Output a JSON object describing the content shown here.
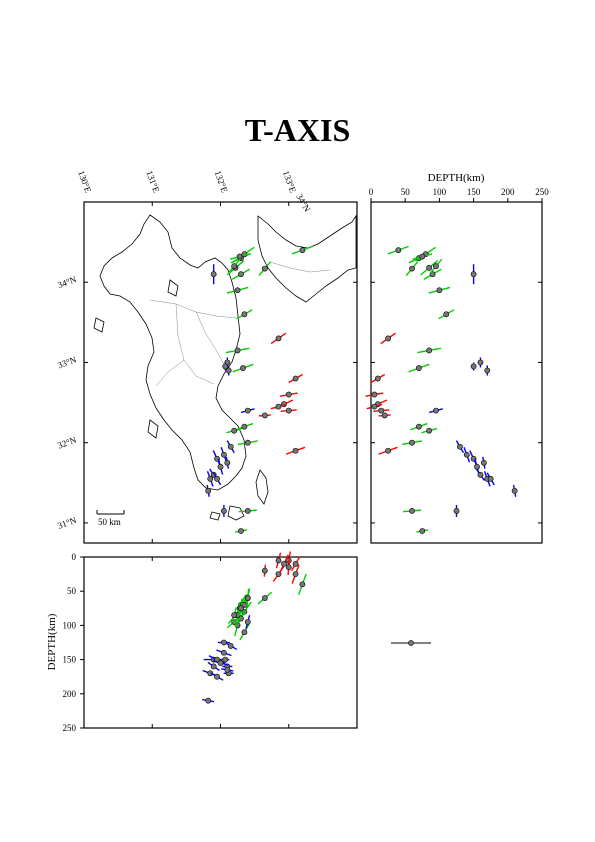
{
  "title": "T-AXIS",
  "colors": {
    "shallow": "#ff0000",
    "intermediate": "#00cc00",
    "deep": "#0000ff",
    "marker": "#777777"
  },
  "map": {
    "lon_ticks": [
      {
        "value": 130,
        "label": "130°E"
      },
      {
        "value": 131,
        "label": "131°E"
      },
      {
        "value": 132,
        "label": "132°E"
      },
      {
        "value": 133,
        "label": "133°E"
      }
    ],
    "lat_ticks": [
      {
        "value": 34,
        "label": "34°N"
      },
      {
        "value": 33,
        "label": "33°N"
      },
      {
        "value": 32,
        "label": "32°N"
      },
      {
        "value": 31,
        "label": "31°N"
      }
    ],
    "corner_label": "34°N",
    "scale_label": "50 km"
  },
  "side_panel": {
    "xlabel": "DEPTH(km)",
    "ticks": [
      0,
      50,
      100,
      150,
      200,
      250
    ]
  },
  "bottom_panel": {
    "ylabel": "DEPTH(km)",
    "ticks": [
      0,
      50,
      100,
      150,
      200,
      250
    ]
  },
  "chart_data": {
    "type": "scatter",
    "lon_range": [
      130.0,
      134.0
    ],
    "lat_range": [
      30.75,
      35.0
    ],
    "depth_range": [
      0,
      250
    ],
    "events": [
      {
        "lon": 132.3,
        "lat": 34.3,
        "depth": 70,
        "az": -25,
        "len": 0.55,
        "class": "intermediate"
      },
      {
        "lon": 132.35,
        "lat": 34.35,
        "depth": 80,
        "az": -35,
        "len": 0.6,
        "class": "intermediate"
      },
      {
        "lon": 132.28,
        "lat": 34.32,
        "depth": 75,
        "az": -15,
        "len": 0.5,
        "class": "intermediate"
      },
      {
        "lon": 132.22,
        "lat": 34.18,
        "depth": 85,
        "az": -40,
        "len": 0.55,
        "class": "intermediate"
      },
      {
        "lon": 132.3,
        "lat": 34.1,
        "depth": 90,
        "az": -30,
        "len": 0.5,
        "class": "intermediate"
      },
      {
        "lon": 132.2,
        "lat": 34.2,
        "depth": 95,
        "az": -50,
        "len": 0.45,
        "class": "intermediate"
      },
      {
        "lon": 131.9,
        "lat": 34.1,
        "depth": 150,
        "az": 90,
        "len": 0.5,
        "class": "deep"
      },
      {
        "lon": 133.2,
        "lat": 34.4,
        "depth": 40,
        "az": -20,
        "len": 0.55,
        "class": "intermediate"
      },
      {
        "lon": 132.65,
        "lat": 34.17,
        "depth": 60,
        "az": -50,
        "len": 0.45,
        "class": "intermediate"
      },
      {
        "lon": 132.25,
        "lat": 33.9,
        "depth": 100,
        "az": -15,
        "len": 0.55,
        "class": "intermediate"
      },
      {
        "lon": 132.35,
        "lat": 33.6,
        "depth": 110,
        "az": -30,
        "len": 0.45,
        "class": "intermediate"
      },
      {
        "lon": 132.25,
        "lat": 33.15,
        "depth": 85,
        "az": -10,
        "len": 0.6,
        "class": "intermediate"
      },
      {
        "lon": 132.33,
        "lat": 32.93,
        "depth": 70,
        "az": -20,
        "len": 0.55,
        "class": "intermediate"
      },
      {
        "lon": 132.1,
        "lat": 33.0,
        "depth": 160,
        "az": 90,
        "len": 0.25,
        "class": "deep"
      },
      {
        "lon": 132.07,
        "lat": 32.95,
        "depth": 150,
        "az": 90,
        "len": 0.2,
        "class": "deep"
      },
      {
        "lon": 132.12,
        "lat": 32.9,
        "depth": 170,
        "az": 90,
        "len": 0.25,
        "class": "deep"
      },
      {
        "lon": 132.85,
        "lat": 33.3,
        "depth": 25,
        "az": -35,
        "len": 0.45,
        "class": "shallow"
      },
      {
        "lon": 133.1,
        "lat": 32.8,
        "depth": 10,
        "az": -30,
        "len": 0.4,
        "class": "shallow"
      },
      {
        "lon": 133.0,
        "lat": 32.6,
        "depth": 5,
        "az": -10,
        "len": 0.45,
        "class": "shallow"
      },
      {
        "lon": 132.93,
        "lat": 32.48,
        "depth": 10,
        "az": -25,
        "len": 0.5,
        "class": "shallow"
      },
      {
        "lon": 133.0,
        "lat": 32.4,
        "depth": 15,
        "az": -5,
        "len": 0.4,
        "class": "shallow"
      },
      {
        "lon": 132.85,
        "lat": 32.45,
        "depth": 5,
        "az": -15,
        "len": 0.4,
        "class": "shallow"
      },
      {
        "lon": 132.65,
        "lat": 32.34,
        "depth": 20,
        "az": -5,
        "len": 0.3,
        "class": "shallow"
      },
      {
        "lon": 132.4,
        "lat": 32.0,
        "depth": 60,
        "az": -10,
        "len": 0.5,
        "class": "intermediate"
      },
      {
        "lon": 132.35,
        "lat": 32.2,
        "depth": 70,
        "az": -20,
        "len": 0.45,
        "class": "intermediate"
      },
      {
        "lon": 132.2,
        "lat": 32.15,
        "depth": 85,
        "az": -15,
        "len": 0.4,
        "class": "intermediate"
      },
      {
        "lon": 132.15,
        "lat": 31.95,
        "depth": 130,
        "az": 60,
        "len": 0.35,
        "class": "deep"
      },
      {
        "lon": 132.05,
        "lat": 31.85,
        "depth": 140,
        "az": 70,
        "len": 0.4,
        "class": "deep"
      },
      {
        "lon": 131.95,
        "lat": 31.8,
        "depth": 150,
        "az": 65,
        "len": 0.45,
        "class": "deep"
      },
      {
        "lon": 132.0,
        "lat": 31.7,
        "depth": 155,
        "az": 75,
        "len": 0.4,
        "class": "deep"
      },
      {
        "lon": 131.9,
        "lat": 31.6,
        "depth": 160,
        "az": 55,
        "len": 0.35,
        "class": "deep"
      },
      {
        "lon": 132.1,
        "lat": 31.75,
        "depth": 165,
        "az": 80,
        "len": 0.3,
        "class": "deep"
      },
      {
        "lon": 131.85,
        "lat": 31.55,
        "depth": 170,
        "az": 70,
        "len": 0.4,
        "class": "deep"
      },
      {
        "lon": 131.95,
        "lat": 31.55,
        "depth": 175,
        "az": 60,
        "len": 0.35,
        "class": "deep"
      },
      {
        "lon": 131.82,
        "lat": 31.4,
        "depth": 210,
        "az": 80,
        "len": 0.3,
        "class": "deep"
      },
      {
        "lon": 132.05,
        "lat": 31.15,
        "depth": 125,
        "az": 90,
        "len": 0.3,
        "class": "deep"
      },
      {
        "lon": 132.4,
        "lat": 31.15,
        "depth": 60,
        "az": -5,
        "len": 0.45,
        "class": "intermediate"
      },
      {
        "lon": 132.3,
        "lat": 30.9,
        "depth": 75,
        "az": -10,
        "len": 0.3,
        "class": "intermediate"
      },
      {
        "lon": 133.1,
        "lat": 31.9,
        "depth": 25,
        "az": -20,
        "len": 0.5,
        "class": "shallow"
      },
      {
        "lon": 132.4,
        "lat": 32.4,
        "depth": 95,
        "az": -15,
        "len": 0.35,
        "class": "deep"
      }
    ]
  }
}
